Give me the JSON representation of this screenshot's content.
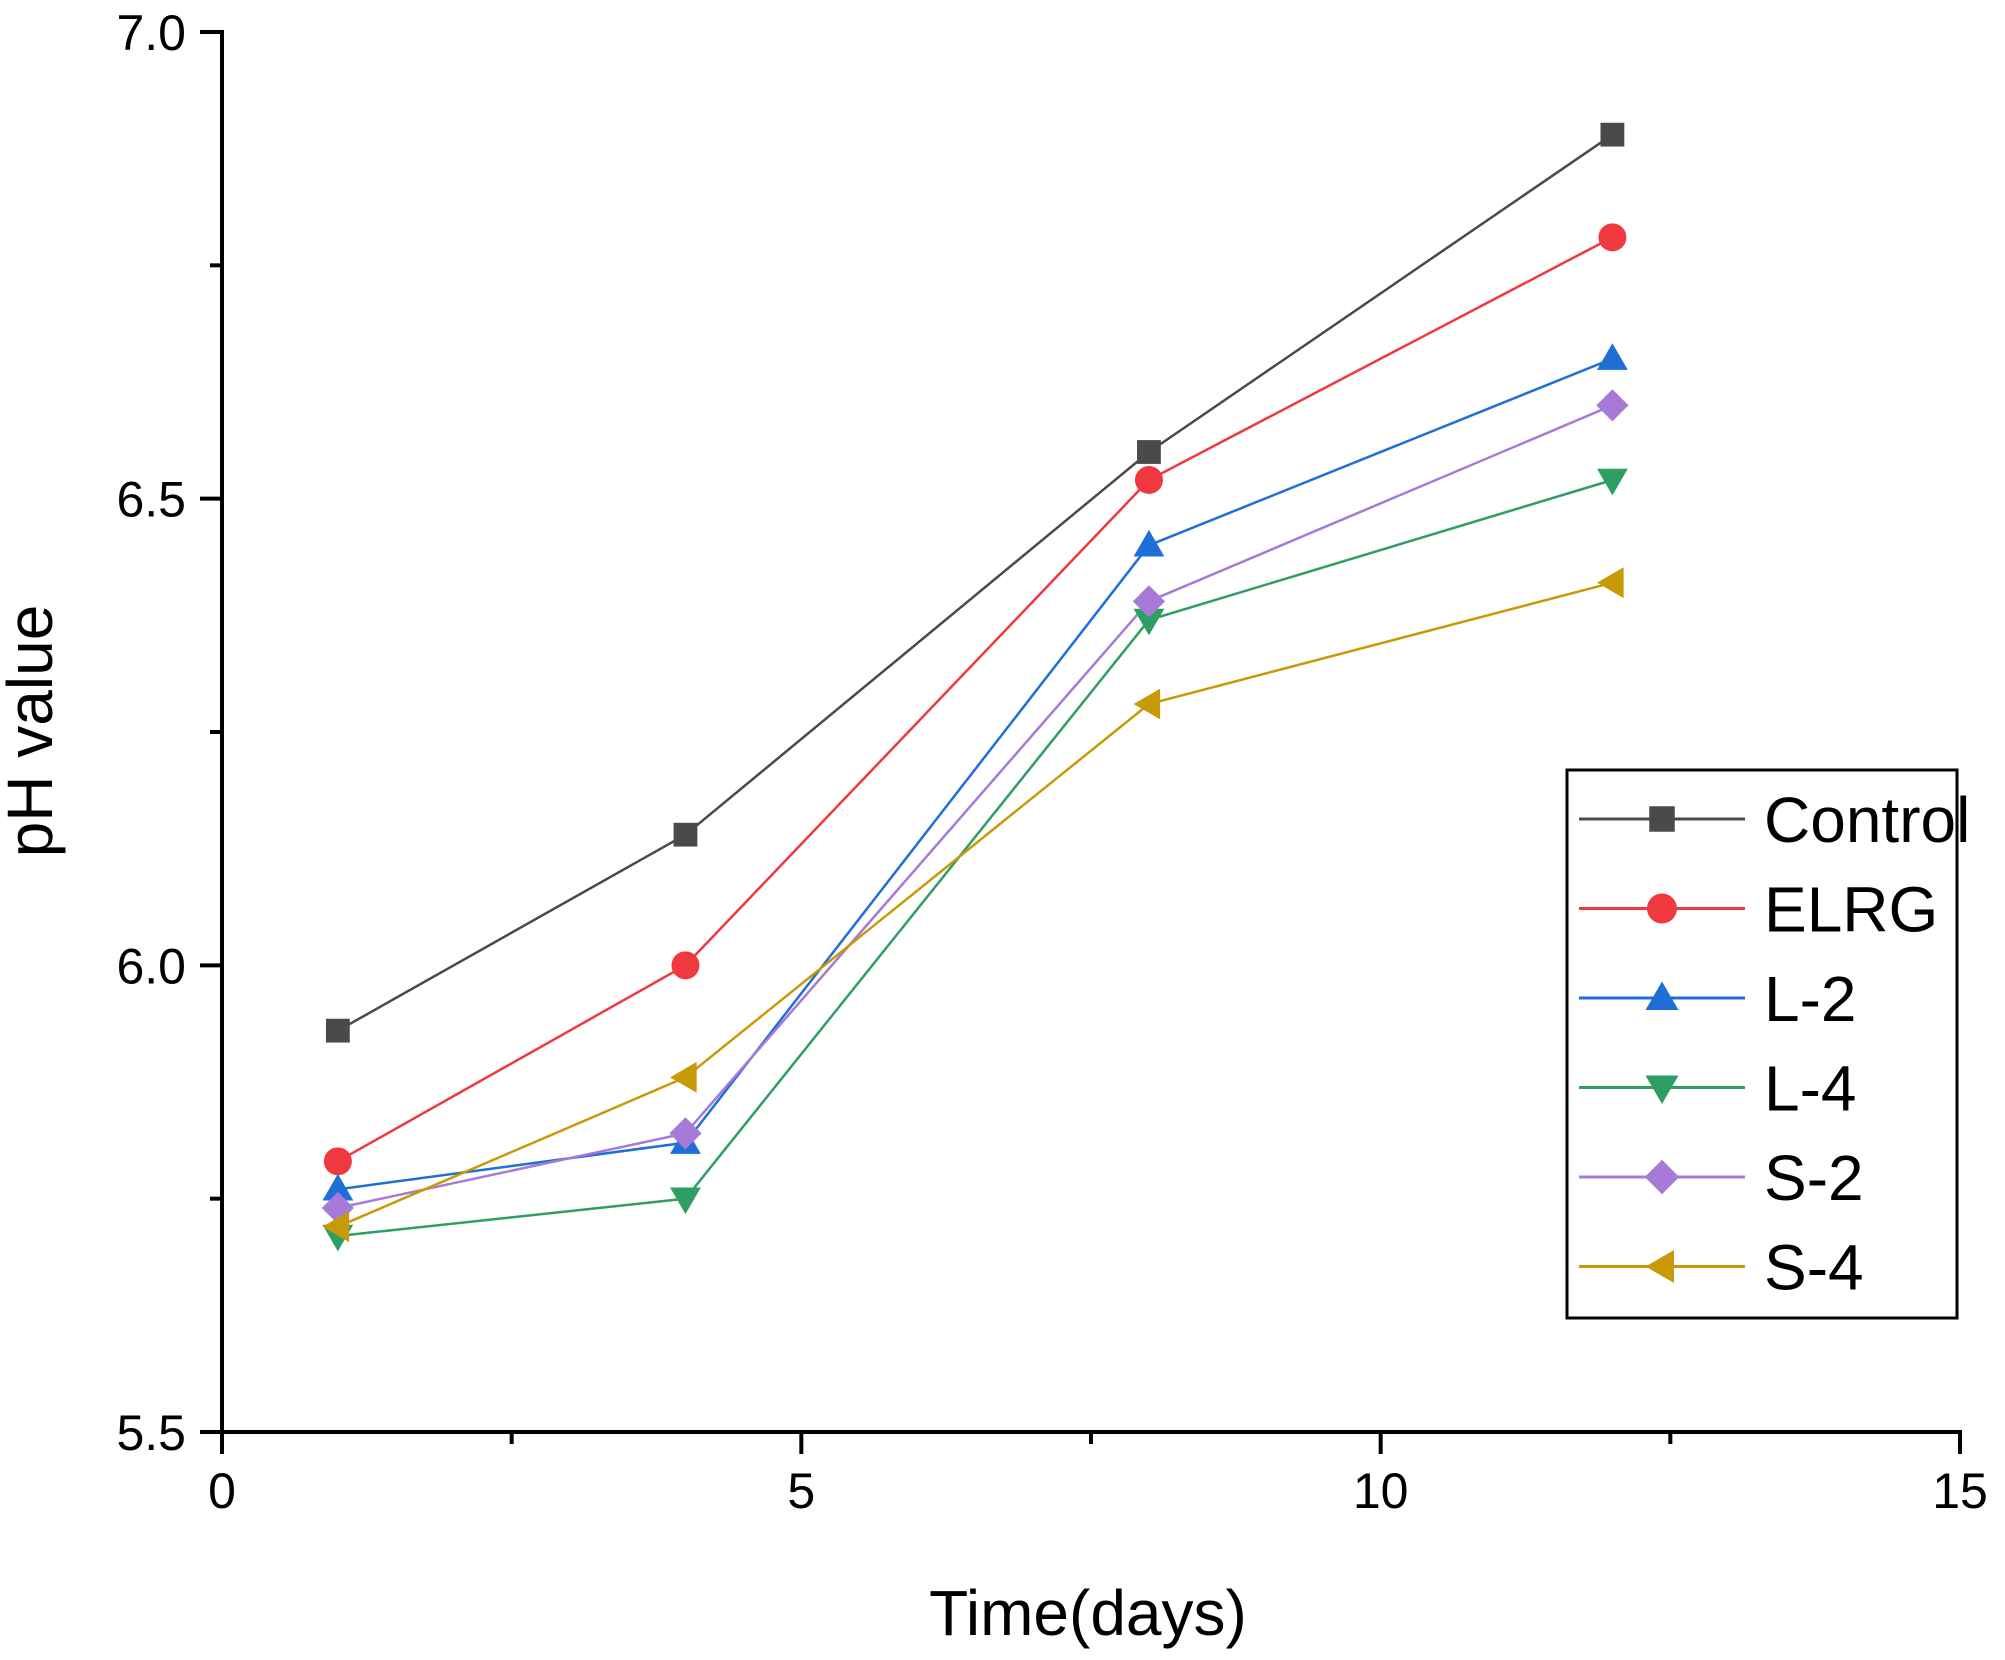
{
  "chart_data": {
    "type": "line",
    "title": "",
    "xlabel": "Time(days)",
    "ylabel": "pH value",
    "xlim": [
      0,
      15
    ],
    "ylim": [
      5.5,
      7.0
    ],
    "x_ticks": [
      0,
      5,
      10,
      15
    ],
    "x_tick_labels": [
      "0",
      "5",
      "10",
      "15"
    ],
    "x_minor_ticks": [
      2.5,
      7.5,
      12.5
    ],
    "y_ticks": [
      5.5,
      6.0,
      6.5,
      7.0
    ],
    "y_tick_labels": [
      "5.5",
      "6.0",
      "6.5",
      "7.0"
    ],
    "y_minor_ticks": [
      5.75,
      6.25,
      6.75
    ],
    "grid": false,
    "legend_position": "right",
    "x": [
      1,
      4,
      8,
      12
    ],
    "series": [
      {
        "name": "Control",
        "marker": "square",
        "color": "#4a4a4a",
        "values": [
          5.93,
          6.14,
          6.55,
          6.89
        ]
      },
      {
        "name": "ELRG",
        "marker": "circle",
        "color": "#f0393f",
        "values": [
          5.79,
          6.0,
          6.52,
          6.78
        ]
      },
      {
        "name": "L-2",
        "marker": "triangle-up",
        "color": "#1f6fd6",
        "values": [
          5.76,
          5.81,
          6.45,
          6.65
        ]
      },
      {
        "name": "L-4",
        "marker": "triangle-down",
        "color": "#2e9e63",
        "values": [
          5.71,
          5.75,
          6.37,
          6.52
        ]
      },
      {
        "name": "S-2",
        "marker": "diamond",
        "color": "#a77ad8",
        "values": [
          5.74,
          5.82,
          6.39,
          6.6
        ]
      },
      {
        "name": "S-4",
        "marker": "triangle-left",
        "color": "#c99a08",
        "values": [
          5.72,
          5.88,
          6.28,
          6.41
        ]
      }
    ]
  }
}
